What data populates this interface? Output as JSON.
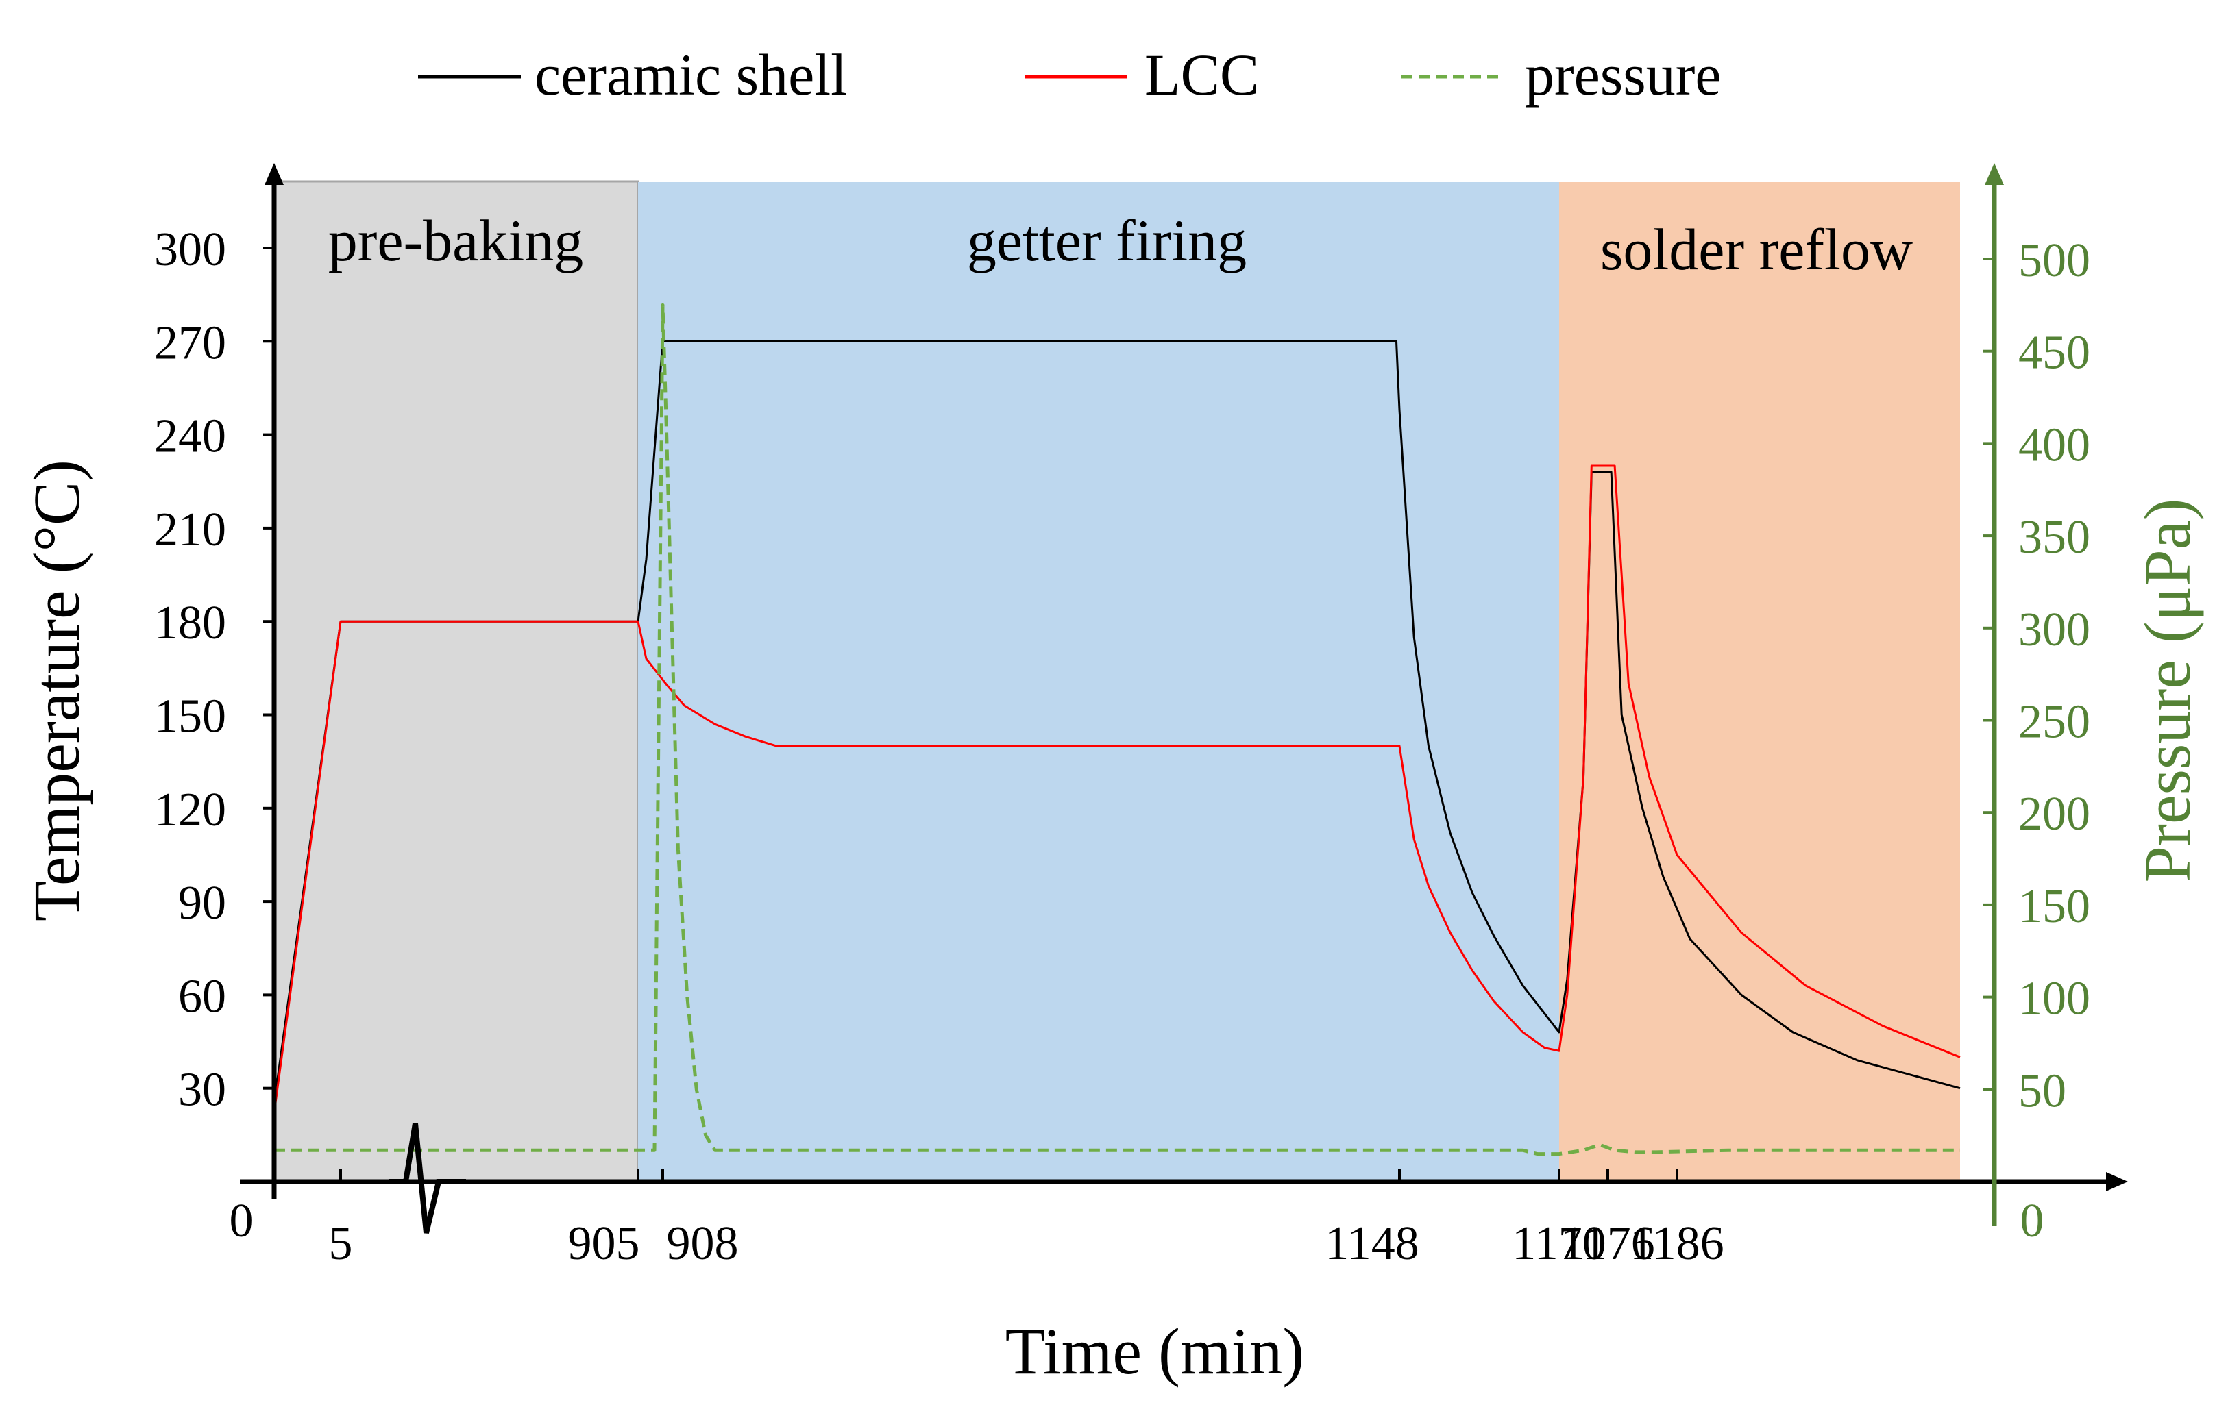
{
  "colors": {
    "ceramic_shell": "#000000",
    "lcc": "#ff0000",
    "pressure": "#70ad47",
    "pressure_axis": "#548235",
    "prebaking_bg": "#d9d9d9",
    "getter_bg": "#bdd7ee",
    "solder_bg": "#f8cbad",
    "axis": "#000000"
  },
  "chart_data": {
    "type": "line",
    "xlabel": "Time (min)",
    "ylabel": "Temperature (°C)",
    "y2label": "Pressure (μPa)",
    "x_origin_label": "0",
    "y2_origin_label": "0",
    "ylim": [
      0,
      330
    ],
    "y2lim": [
      0,
      550
    ],
    "yticks": [
      "30",
      "60",
      "90",
      "120",
      "150",
      "180",
      "210",
      "240",
      "270",
      "300"
    ],
    "y2ticks": [
      "50",
      "100",
      "150",
      "200",
      "250",
      "300",
      "350",
      "400",
      "450",
      "500"
    ],
    "x_scale": "piecewise (broken axis between 5 and 905 min)",
    "x": [
      0,
      5,
      905,
      908,
      1148,
      1170,
      1176,
      1186,
      1208
    ],
    "xtick_labels": [
      "5",
      "905",
      "908",
      "1148",
      "1170",
      "1176",
      "1186"
    ],
    "phases": [
      {
        "name": "pre-baking",
        "start": 0,
        "end": 905
      },
      {
        "name": "getter firing",
        "start": 905,
        "end": 1170
      },
      {
        "name": "solder reflow",
        "start": 1170,
        "end": 1208
      }
    ],
    "legend": [
      {
        "name": "ceramic shell",
        "style": "solid"
      },
      {
        "name": "LCC",
        "style": "solid"
      },
      {
        "name": "pressure",
        "style": "dashed"
      }
    ],
    "legend_position": "top",
    "series": [
      {
        "name": "ceramic shell",
        "axis": "left",
        "points": [
          [
            0,
            25
          ],
          [
            5,
            180
          ],
          [
            905,
            180
          ],
          [
            906,
            200
          ],
          [
            908,
            270
          ],
          [
            1147,
            270
          ],
          [
            1148,
            248
          ],
          [
            1150,
            175
          ],
          [
            1152,
            140
          ],
          [
            1155,
            112
          ],
          [
            1158,
            93
          ],
          [
            1161,
            79
          ],
          [
            1165,
            63
          ],
          [
            1168,
            54
          ],
          [
            1170,
            48
          ],
          [
            1171,
            65
          ],
          [
            1173,
            130
          ],
          [
            1174,
            228
          ],
          [
            1175.5,
            228
          ],
          [
            1176,
            228
          ],
          [
            1176.5,
            228
          ],
          [
            1178,
            150
          ],
          [
            1181,
            120
          ],
          [
            1184,
            98
          ],
          [
            1187,
            78
          ],
          [
            1191,
            60
          ],
          [
            1195,
            48
          ],
          [
            1200,
            39
          ],
          [
            1208,
            30
          ]
        ]
      },
      {
        "name": "LCC",
        "axis": "left",
        "points": [
          [
            0,
            22
          ],
          [
            5,
            180
          ],
          [
            905,
            180
          ],
          [
            906,
            168
          ],
          [
            909,
            160
          ],
          [
            915,
            153
          ],
          [
            925,
            147
          ],
          [
            935,
            143
          ],
          [
            945,
            140
          ],
          [
            1148,
            140
          ],
          [
            1149,
            125
          ],
          [
            1150,
            110
          ],
          [
            1152,
            95
          ],
          [
            1155,
            80
          ],
          [
            1158,
            68
          ],
          [
            1161,
            58
          ],
          [
            1165,
            48
          ],
          [
            1168,
            43
          ],
          [
            1170,
            42
          ],
          [
            1171,
            60
          ],
          [
            1173,
            130
          ],
          [
            1174,
            230
          ],
          [
            1176,
            230
          ],
          [
            1177,
            230
          ],
          [
            1179,
            160
          ],
          [
            1182,
            130
          ],
          [
            1186,
            105
          ],
          [
            1191,
            80
          ],
          [
            1196,
            63
          ],
          [
            1202,
            50
          ],
          [
            1208,
            40
          ]
        ]
      },
      {
        "name": "pressure",
        "axis": "right",
        "points": [
          [
            0,
            17
          ],
          [
            905,
            17
          ],
          [
            907,
            17
          ],
          [
            908,
            475
          ],
          [
            909,
            420
          ],
          [
            911,
            300
          ],
          [
            913,
            180
          ],
          [
            916,
            100
          ],
          [
            919,
            50
          ],
          [
            922,
            25
          ],
          [
            925,
            17
          ],
          [
            1165,
            17
          ],
          [
            1167,
            15
          ],
          [
            1170,
            15
          ],
          [
            1173,
            17
          ],
          [
            1175,
            20
          ],
          [
            1177,
            17
          ],
          [
            1180,
            16
          ],
          [
            1183,
            16
          ],
          [
            1190,
            17
          ],
          [
            1201,
            17
          ],
          [
            1208,
            17
          ]
        ]
      }
    ]
  }
}
